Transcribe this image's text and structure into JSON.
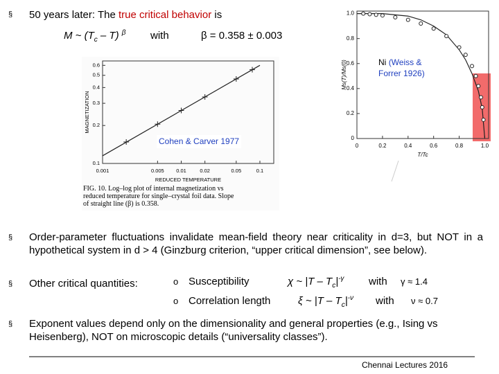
{
  "bullet_1": {
    "marker": "§",
    "lead": "50 years later: The ",
    "highlight": "true critical behavior",
    "tail": " is"
  },
  "formula_1": {
    "m": "M ~ (T",
    "c": "c",
    "rest": " – T) ",
    "beta": "β",
    "with": "with",
    "value": "β = 0.358 ± 0.003"
  },
  "figure_cohen": {
    "label": "Cohen & Carver 1977",
    "ylabel": "MAGNETIZATION",
    "xlabel": "REDUCED  TEMPERATURE",
    "caption": [
      "FIG. 10.  Log–log plot of internal magnetization vs",
      "reduced temperature for single–crystal foil data.  Slope",
      "of straight line (β) is 0.358."
    ],
    "log_x": true,
    "log_y": true,
    "xlim": [
      0.001,
      0.15
    ],
    "ylim": [
      0.1,
      0.65
    ],
    "xticks": [
      0.001,
      0.005,
      0.01,
      0.02,
      0.05,
      0.1
    ],
    "yticks": [
      0.1,
      0.2,
      0.3,
      0.4,
      0.5,
      0.6
    ],
    "points": {
      "x": [
        0.002,
        0.005,
        0.01,
        0.02,
        0.05,
        0.08
      ],
      "y": [
        0.148,
        0.205,
        0.263,
        0.337,
        0.468,
        0.554
      ]
    },
    "fit": {
      "x": [
        0.001,
        0.1
      ],
      "y": [
        0.115,
        0.6
      ]
    }
  },
  "figure_ni": {
    "label_name": "Ni",
    "label_source": "(Weiss & Forrer 1926)",
    "ylabel": "Ms(T)/Ms(0)",
    "xlabel": "T/Tc",
    "xlim": [
      0,
      1.03
    ],
    "ylim": [
      0,
      1.02
    ],
    "xticks": [
      0,
      0.2,
      0.4,
      0.6,
      0.8,
      {
        "value": 1,
        "label": "1.0"
      }
    ],
    "yticks": [
      0,
      0.2,
      0.4,
      0.6,
      0.8,
      {
        "value": 1,
        "label": "1.0"
      }
    ],
    "points": {
      "x": [
        0.05,
        0.1,
        0.15,
        0.2,
        0.3,
        0.4,
        0.5,
        0.6,
        0.7,
        0.8,
        0.85,
        0.9,
        0.93,
        0.95,
        0.97,
        0.98,
        0.99
      ],
      "y": [
        1.0,
        0.995,
        0.99,
        0.985,
        0.97,
        0.95,
        0.92,
        0.88,
        0.82,
        0.73,
        0.67,
        0.58,
        0.5,
        0.42,
        0.33,
        0.25,
        0.15
      ]
    },
    "curve": {
      "x": [
        0,
        0.2,
        0.4,
        0.5,
        0.6,
        0.7,
        0.8,
        0.85,
        0.9,
        0.95,
        0.98,
        1.0
      ],
      "y": [
        1.0,
        1.0,
        0.98,
        0.95,
        0.9,
        0.83,
        0.71,
        0.63,
        0.52,
        0.38,
        0.24,
        0
      ]
    }
  },
  "bullet_2": {
    "marker": "§",
    "text": "Order-parameter fluctuations invalidate mean-field theory near criticality in d=3, but NOT in a hypothetical system in d > 4 (Ginzburg criterion, “upper critical dimension”, see below)."
  },
  "bullet_3": {
    "marker": "§",
    "text": "Other critical quantities:",
    "items": [
      {
        "marker": "o",
        "name": "Susceptibility",
        "law": "χ ~ |T – T",
        "sub": "c",
        "law_end": "|",
        "exp": "-γ",
        "with": "with",
        "value": "γ ≈ 1.4"
      },
      {
        "marker": "o",
        "name": "Correlation length",
        "law": "ξ ~ |T – T",
        "sub": "c",
        "law_end": "|",
        "exp": "-ν",
        "with": "with",
        "value": "ν ≈ 0.7"
      }
    ]
  },
  "bullet_4": {
    "marker": "§",
    "text": "Exponent values depend only on the dimensionality and general properties (e.g., Ising vs Heisenberg), NOT on microscopic details (“universality classes”)."
  },
  "footer": "Chennai Lectures 2016"
}
